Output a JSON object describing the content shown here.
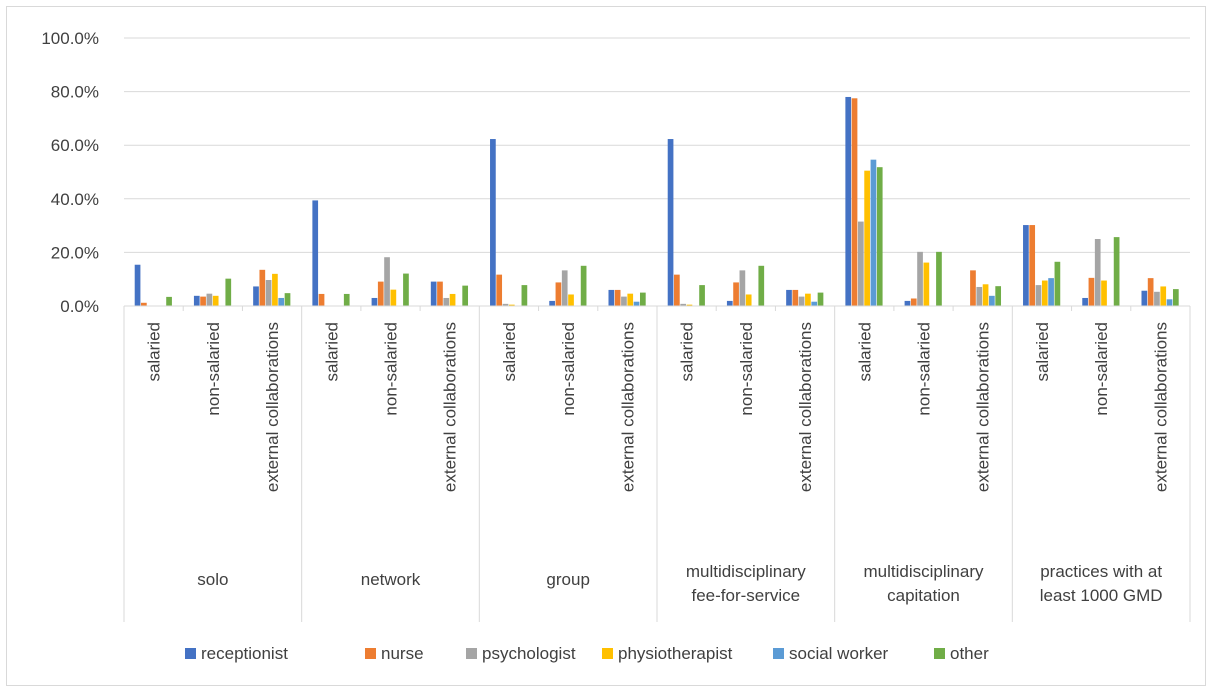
{
  "chart_data": {
    "type": "bar",
    "title": "",
    "xlabel": "",
    "ylabel": "",
    "ylim": [
      0,
      100
    ],
    "y_ticks": [
      "0.0%",
      "20.0%",
      "40.0%",
      "60.0%",
      "80.0%",
      "100.0%"
    ],
    "grid": true,
    "legend_position": "bottom",
    "groups": [
      {
        "label": "solo",
        "subcategories": [
          "salaried",
          "non-salaried",
          "external collaborations"
        ]
      },
      {
        "label": "network",
        "subcategories": [
          "salaried",
          "non-salaried",
          "external collaborations"
        ]
      },
      {
        "label": "group",
        "subcategories": [
          "salaried",
          "non-salaried",
          "external collaborations"
        ]
      },
      {
        "label": "multidisciplinary fee-for-service",
        "subcategories": [
          "salaried",
          "non-salaried",
          "external collaborations"
        ]
      },
      {
        "label": "multidisciplinary capitation",
        "subcategories": [
          "salaried",
          "non-salaried",
          "external collaborations"
        ]
      },
      {
        "label": "practices with at least 1000 GMD",
        "subcategories": [
          "salaried",
          "non-salaried",
          "external collaborations"
        ]
      }
    ],
    "series": [
      {
        "name": "receptionist",
        "color": "#4472C4",
        "values": [
          15.4,
          3.8,
          7.3,
          39.4,
          3.0,
          9.1,
          62.3,
          1.9,
          6.0,
          62.3,
          1.9,
          6.0,
          78.0,
          1.9,
          0.0,
          30.2,
          3.0,
          5.7
        ]
      },
      {
        "name": "nurse",
        "color": "#ED7D31",
        "values": [
          1.2,
          3.5,
          13.5,
          4.5,
          9.1,
          9.1,
          11.7,
          8.8,
          6.0,
          11.7,
          8.8,
          6.0,
          77.5,
          2.8,
          13.3,
          30.2,
          10.5,
          10.4
        ]
      },
      {
        "name": "psychologist",
        "color": "#A5A5A5",
        "values": [
          0.0,
          4.6,
          9.7,
          0.0,
          18.2,
          3.0,
          0.8,
          13.3,
          3.5,
          0.8,
          13.3,
          3.5,
          31.5,
          20.2,
          7.1,
          7.8,
          25.0,
          5.3
        ]
      },
      {
        "name": "physiotherapist",
        "color": "#FFC000",
        "values": [
          0.0,
          3.8,
          12.0,
          0.0,
          6.1,
          4.5,
          0.5,
          4.3,
          4.6,
          0.5,
          4.3,
          4.6,
          50.5,
          16.2,
          8.1,
          9.5,
          9.5,
          7.3
        ]
      },
      {
        "name": "social worker",
        "color": "#5B9BD5",
        "values": [
          0.0,
          0.0,
          3.0,
          0.0,
          0.0,
          0.0,
          0.0,
          0.0,
          1.6,
          0.0,
          0.0,
          1.6,
          54.6,
          0.0,
          3.8,
          10.4,
          0.0,
          2.5
        ]
      },
      {
        "name": "other",
        "color": "#70AD47",
        "values": [
          3.4,
          10.2,
          4.8,
          4.5,
          12.1,
          7.6,
          7.8,
          15.0,
          5.0,
          7.8,
          15.0,
          5.0,
          51.8,
          20.2,
          7.4,
          16.5,
          25.7,
          6.3
        ]
      }
    ]
  }
}
